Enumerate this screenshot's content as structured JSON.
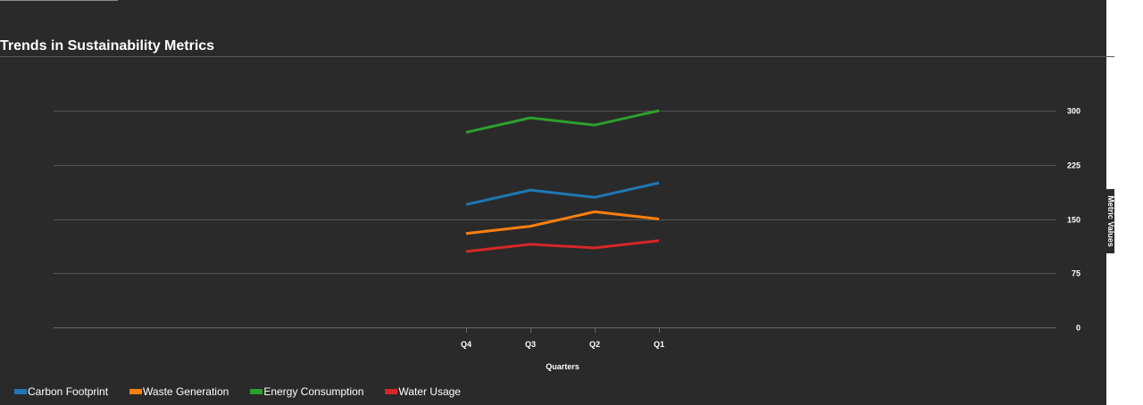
{
  "chart_data": {
    "type": "line",
    "title": "Trends in Sustainability Metrics",
    "xlabel": "Quarters",
    "ylabel": "Metric Values",
    "categories": [
      "Q4",
      "Q3",
      "Q2",
      "Q1"
    ],
    "yticks": [
      0,
      75,
      150,
      225,
      300
    ],
    "ylim": [
      0,
      300
    ],
    "y_axis_position": "right",
    "grid": true,
    "legend_position": "bottom-left",
    "series": [
      {
        "name": "Carbon Footprint",
        "color": "#1f77b4",
        "values": [
          170,
          190,
          180,
          200
        ]
      },
      {
        "name": "Waste Generation",
        "color": "#ff7f0e",
        "values": [
          130,
          140,
          160,
          150
        ]
      },
      {
        "name": "Energy Consumption",
        "color": "#2ca02c",
        "values": [
          270,
          290,
          280,
          300
        ]
      },
      {
        "name": "Water Usage",
        "color": "#d62728",
        "values": [
          105,
          115,
          110,
          120
        ]
      }
    ]
  }
}
